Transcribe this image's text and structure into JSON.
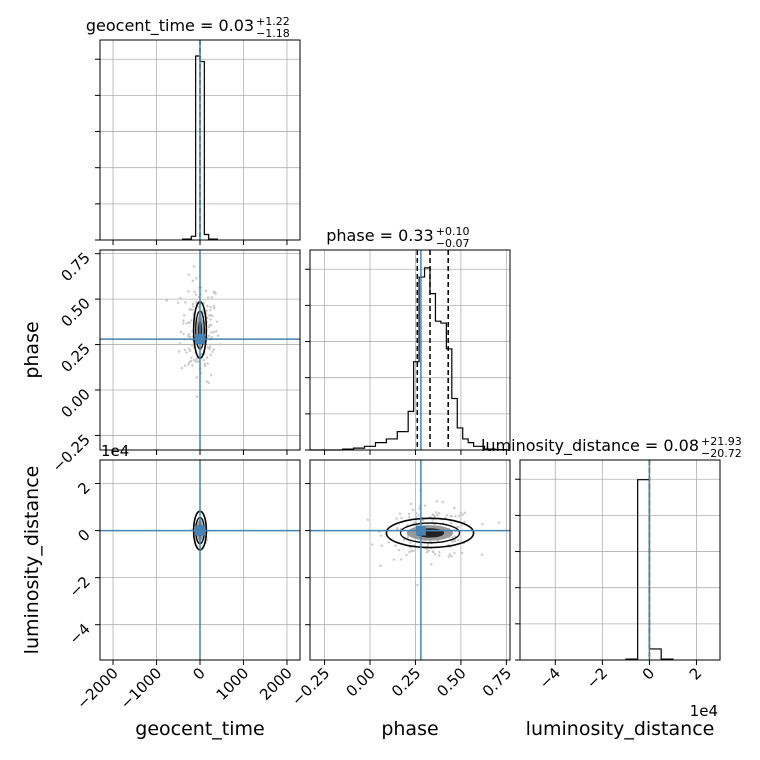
{
  "chart_data": {
    "type": "corner",
    "truth_color": "#4682b4",
    "hist_color": "#000000",
    "grid": true,
    "parameters": [
      {
        "name": "geocent_time",
        "xlabel": "geocent_time",
        "title_name": "geocent_time",
        "title_value": "0.03",
        "title_plus": "+1.22",
        "title_minus": "−1.18",
        "range": [
          -2300,
          2300
        ],
        "ticks": [
          -2000,
          -1000,
          0,
          1000,
          2000
        ],
        "tick_labels": [
          "−2000",
          "−1000",
          "0",
          "1000",
          "2000"
        ],
        "truth": 0,
        "quantiles": [
          0.03
        ],
        "hist_edges": [
          -400,
          -200,
          -100,
          0,
          100,
          200,
          400
        ],
        "hist_counts": [
          0.005,
          0.02,
          1.0,
          0.97,
          0.03,
          0.005
        ]
      },
      {
        "name": "phase",
        "xlabel": "phase",
        "title_name": "phase",
        "title_value": "0.33",
        "title_plus": "+0.10",
        "title_minus": "−0.07",
        "range": [
          -0.33,
          0.77
        ],
        "ticks": [
          -0.25,
          0.0,
          0.25,
          0.5,
          0.75
        ],
        "tick_labels": [
          "−0.25",
          "0.00",
          "0.25",
          "0.50",
          "0.75"
        ],
        "truth": 0.28,
        "quantiles": [
          0.26,
          0.33,
          0.43
        ],
        "hist_edges": [
          -0.33,
          -0.27,
          -0.21,
          -0.15,
          -0.09,
          -0.03,
          0.03,
          0.09,
          0.15,
          0.21,
          0.24,
          0.27,
          0.3,
          0.33,
          0.36,
          0.39,
          0.42,
          0.45,
          0.48,
          0.51,
          0.54,
          0.57,
          0.63,
          0.69,
          0.75,
          0.77
        ],
        "hist_counts": [
          0.0,
          0.0,
          0.0,
          0.005,
          0.01,
          0.02,
          0.04,
          0.06,
          0.1,
          0.21,
          0.48,
          0.94,
          0.99,
          0.85,
          0.7,
          0.69,
          0.55,
          0.28,
          0.12,
          0.06,
          0.04,
          0.02,
          0.005,
          0.002,
          0.0
        ]
      },
      {
        "name": "luminosity_distance",
        "xlabel": "luminosity_distance",
        "title_name": "luminosity_distance",
        "title_value": "0.08",
        "title_plus": "+21.93",
        "title_minus": "−20.72",
        "range": [
          -5.5,
          3.0
        ],
        "ticks": [
          -4,
          -2,
          0,
          2
        ],
        "tick_labels": [
          "−4",
          "−2",
          "0",
          "2"
        ],
        "offset_text": "1e4",
        "truth": 0,
        "quantiles": [
          0.0
        ],
        "hist_edges": [
          -1.0,
          -0.5,
          0.0,
          0.5,
          1.0
        ],
        "hist_counts": [
          0.005,
          0.98,
          0.06,
          0.005
        ]
      }
    ],
    "y_axes": [
      {
        "row": 1,
        "ylabel": "phase",
        "range": [
          -0.33,
          0.77
        ],
        "ticks": [
          -0.25,
          0.0,
          0.25,
          0.5,
          0.75
        ],
        "tick_labels": [
          "−0.25",
          "0.00",
          "0.25",
          "0.50",
          "0.75"
        ]
      },
      {
        "row": 2,
        "ylabel": "luminosity_distance",
        "range": [
          -5.5,
          3.0
        ],
        "ticks": [
          -4,
          -2,
          0,
          2
        ],
        "tick_labels": [
          "−4",
          "−2",
          "0",
          "2"
        ],
        "offset_text": "1e4"
      }
    ],
    "panels_2d": [
      {
        "row": 1,
        "col": 0,
        "center_x": 0.03,
        "center_y": 0.33,
        "spread_x": 40,
        "spread_y": 0.08,
        "scatter_x": 220,
        "scatter_y": 0.14
      },
      {
        "row": 2,
        "col": 0,
        "center_x": 0.03,
        "center_y": 0.0,
        "spread_x": 40,
        "spread_y": 0.4,
        "scatter_x": 60,
        "scatter_y": 0.2
      },
      {
        "row": 2,
        "col": 1,
        "center_x": 0.33,
        "center_y": -0.1,
        "spread_x": 0.13,
        "spread_y": 0.28,
        "scatter_x": 0.12,
        "scatter_y": 0.55
      }
    ]
  }
}
